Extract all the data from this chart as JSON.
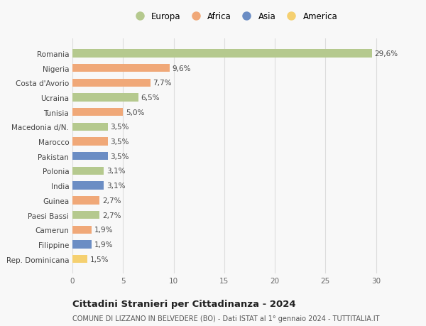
{
  "categories": [
    "Rep. Dominicana",
    "Filippine",
    "Camerun",
    "Paesi Bassi",
    "Guinea",
    "India",
    "Polonia",
    "Pakistan",
    "Marocco",
    "Macedonia d/N.",
    "Tunisia",
    "Ucraina",
    "Costa d'Avorio",
    "Nigeria",
    "Romania"
  ],
  "values": [
    1.5,
    1.9,
    1.9,
    2.7,
    2.7,
    3.1,
    3.1,
    3.5,
    3.5,
    3.5,
    5.0,
    6.5,
    7.7,
    9.6,
    29.6
  ],
  "labels": [
    "1,5%",
    "1,9%",
    "1,9%",
    "2,7%",
    "2,7%",
    "3,1%",
    "3,1%",
    "3,5%",
    "3,5%",
    "3,5%",
    "5,0%",
    "6,5%",
    "7,7%",
    "9,6%",
    "29,6%"
  ],
  "continents": [
    "America",
    "Asia",
    "Africa",
    "Europa",
    "Africa",
    "Asia",
    "Europa",
    "Asia",
    "Africa",
    "Europa",
    "Africa",
    "Europa",
    "Africa",
    "Africa",
    "Europa"
  ],
  "continent_colors": {
    "Europa": "#b5c98e",
    "Africa": "#f0a878",
    "Asia": "#6b8dc4",
    "America": "#f5d070"
  },
  "legend_entries": [
    "Europa",
    "Africa",
    "Asia",
    "America"
  ],
  "xlim": [
    0,
    32
  ],
  "xticks": [
    0,
    5,
    10,
    15,
    20,
    25,
    30
  ],
  "title": "Cittadini Stranieri per Cittadinanza - 2024",
  "subtitle": "COMUNE DI LIZZANO IN BELVEDERE (BO) - Dati ISTAT al 1° gennaio 2024 - TUTTITALIA.IT",
  "background_color": "#f8f8f8",
  "grid_color": "#dddddd",
  "bar_height": 0.55,
  "label_fontsize": 7.5,
  "title_fontsize": 9.5,
  "subtitle_fontsize": 7.0,
  "tick_fontsize": 7.5,
  "legend_fontsize": 8.5
}
